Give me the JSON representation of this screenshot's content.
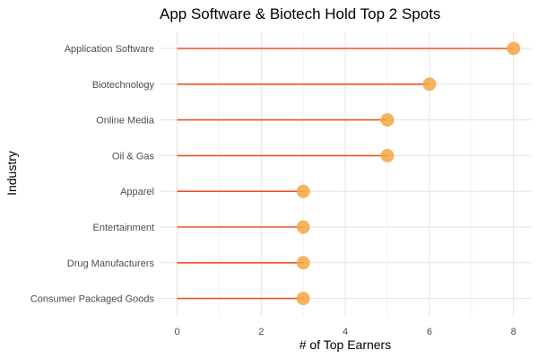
{
  "chart_data": {
    "type": "lollipop",
    "title": "App Software & Biotech Hold Top 2 Spots",
    "xlabel": "# of Top Earners",
    "ylabel": "Industry",
    "categories": [
      "Application Software",
      "Biotechnology",
      "Online Media",
      "Oil & Gas",
      "Apparel",
      "Entertainment",
      "Drug Manufacturers",
      "Consumer Packaged Goods"
    ],
    "values": [
      8,
      6,
      5,
      5,
      3,
      3,
      3,
      3
    ],
    "xlim": [
      0,
      8
    ],
    "xticks": [
      0,
      2,
      4,
      6,
      8
    ],
    "grid": true,
    "colors": {
      "stem": "#e8542a",
      "point": "#f5a742",
      "grid_major": "#e3e3e3",
      "grid_minor": "#f2f2f2"
    }
  }
}
